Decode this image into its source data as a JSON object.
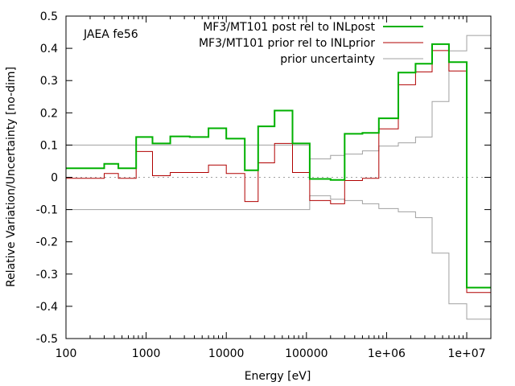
{
  "chart_data": {
    "type": "line",
    "title": "",
    "annotation": "JAEA fe56",
    "xlabel": "Energy [eV]",
    "ylabel": "Relative Variation/Uncertainty [no-dim]",
    "xscale": "log",
    "xlim": [
      100,
      20000000
    ],
    "ylim": [
      -0.5,
      0.5
    ],
    "x_ticks": [
      100,
      1000,
      10000,
      100000,
      1000000,
      10000000
    ],
    "x_tick_labels": [
      "100",
      "1000",
      "10000",
      "100000",
      "1e+06",
      "1e+07"
    ],
    "y_ticks": [
      -0.5,
      -0.4,
      -0.3,
      -0.2,
      -0.1,
      0,
      0.1,
      0.2,
      0.3,
      0.4,
      0.5
    ],
    "y_tick_labels": [
      "-0.5",
      "-0.4",
      "-0.3",
      "-0.2",
      "-0.1",
      "0",
      "0.1",
      "0.2",
      "0.3",
      "0.4",
      "0.5"
    ],
    "grid": false,
    "zero_line": true,
    "legend_position": "top-right",
    "series": [
      {
        "name": "MF3/MT101 post rel to INLpost",
        "color": "#00b000",
        "style": "step",
        "edges": [
          100,
          300,
          450,
          750,
          1200,
          2000,
          3500,
          6000,
          10000,
          17000,
          25000,
          40000,
          67000,
          110000,
          200000,
          300000,
          500000,
          800000,
          1400000,
          2300000,
          3700000,
          6000000,
          10000000,
          20000000
        ],
        "values": [
          0.028,
          0.042,
          0.028,
          0.125,
          0.105,
          0.127,
          0.125,
          0.152,
          0.12,
          0.022,
          0.158,
          0.207,
          0.105,
          -0.005,
          -0.008,
          0.135,
          0.138,
          0.183,
          0.325,
          0.352,
          0.413,
          0.357,
          -0.342
        ]
      },
      {
        "name": "MF3/MT101 prior rel to INLprior",
        "color": "#b00000",
        "style": "step",
        "edges": [
          100,
          300,
          450,
          750,
          1200,
          2000,
          3500,
          6000,
          10000,
          17000,
          25000,
          40000,
          67000,
          110000,
          200000,
          300000,
          500000,
          800000,
          1400000,
          2300000,
          3700000,
          6000000,
          10000000,
          20000000
        ],
        "values": [
          -0.003,
          0.012,
          -0.003,
          0.08,
          0.005,
          0.015,
          0.015,
          0.038,
          0.012,
          -0.075,
          0.045,
          0.105,
          0.015,
          -0.072,
          -0.082,
          -0.01,
          -0.003,
          0.15,
          0.287,
          0.327,
          0.393,
          0.33,
          -0.357
        ]
      },
      {
        "name": "prior uncertainty",
        "color": "#a0a0a0",
        "style": "step",
        "symmetric": true,
        "edges": [
          100,
          110000,
          200000,
          300000,
          500000,
          800000,
          1400000,
          2300000,
          3700000,
          6000000,
          10000000,
          20000000
        ],
        "values": [
          0.1,
          0.057,
          0.068,
          0.072,
          0.082,
          0.097,
          0.107,
          0.125,
          0.235,
          0.392,
          0.44
        ]
      }
    ]
  },
  "colors": {
    "axis": "#000000",
    "zero_line": "#a0a0a0"
  }
}
